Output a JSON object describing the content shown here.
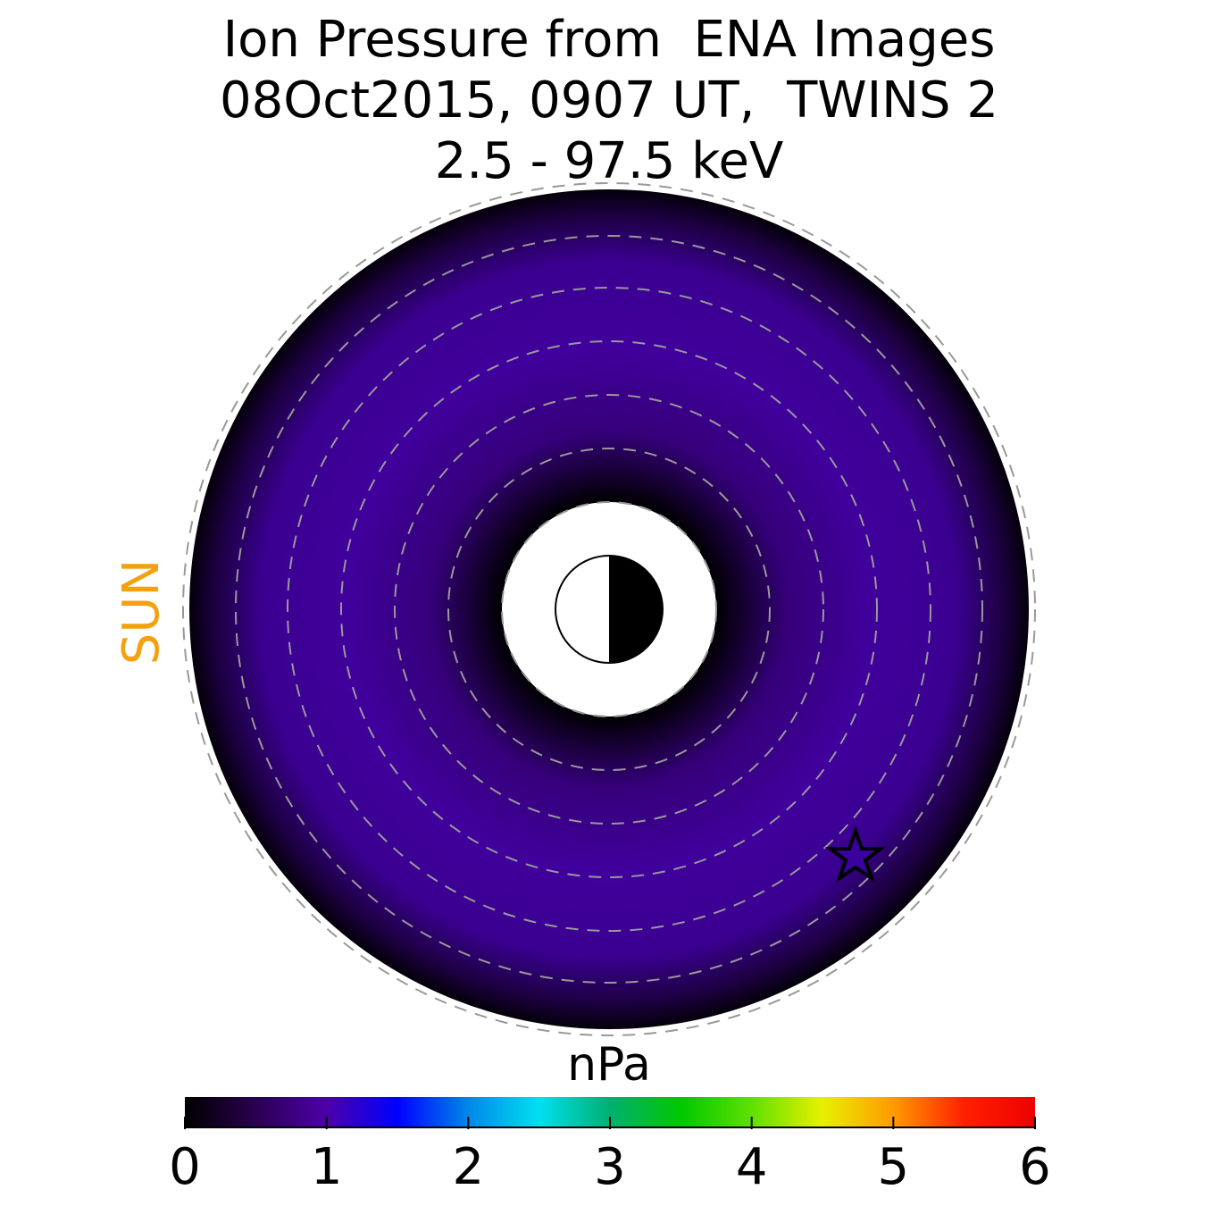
{
  "chart_data": {
    "type": "polar-map",
    "title": [
      "Ion Pressure from  ENA Images",
      "08Oct2015, 0907 UT,  TWINS 2",
      "2.5 - 97.5 keV"
    ],
    "sun_label": "SUN",
    "colorbar": {
      "label": "nPa",
      "lim": [
        0,
        6
      ],
      "ticks": [
        0,
        1,
        2,
        3,
        4,
        5,
        6
      ],
      "colors": [
        "#000000",
        "#2a0050",
        "#4d00a8",
        "#0000ff",
        "#0088e8",
        "#00e0f0",
        "#00b070",
        "#00c800",
        "#60e000",
        "#e8f000",
        "#ff9a00",
        "#ff2000",
        "#ee0000"
      ]
    }
  }
}
